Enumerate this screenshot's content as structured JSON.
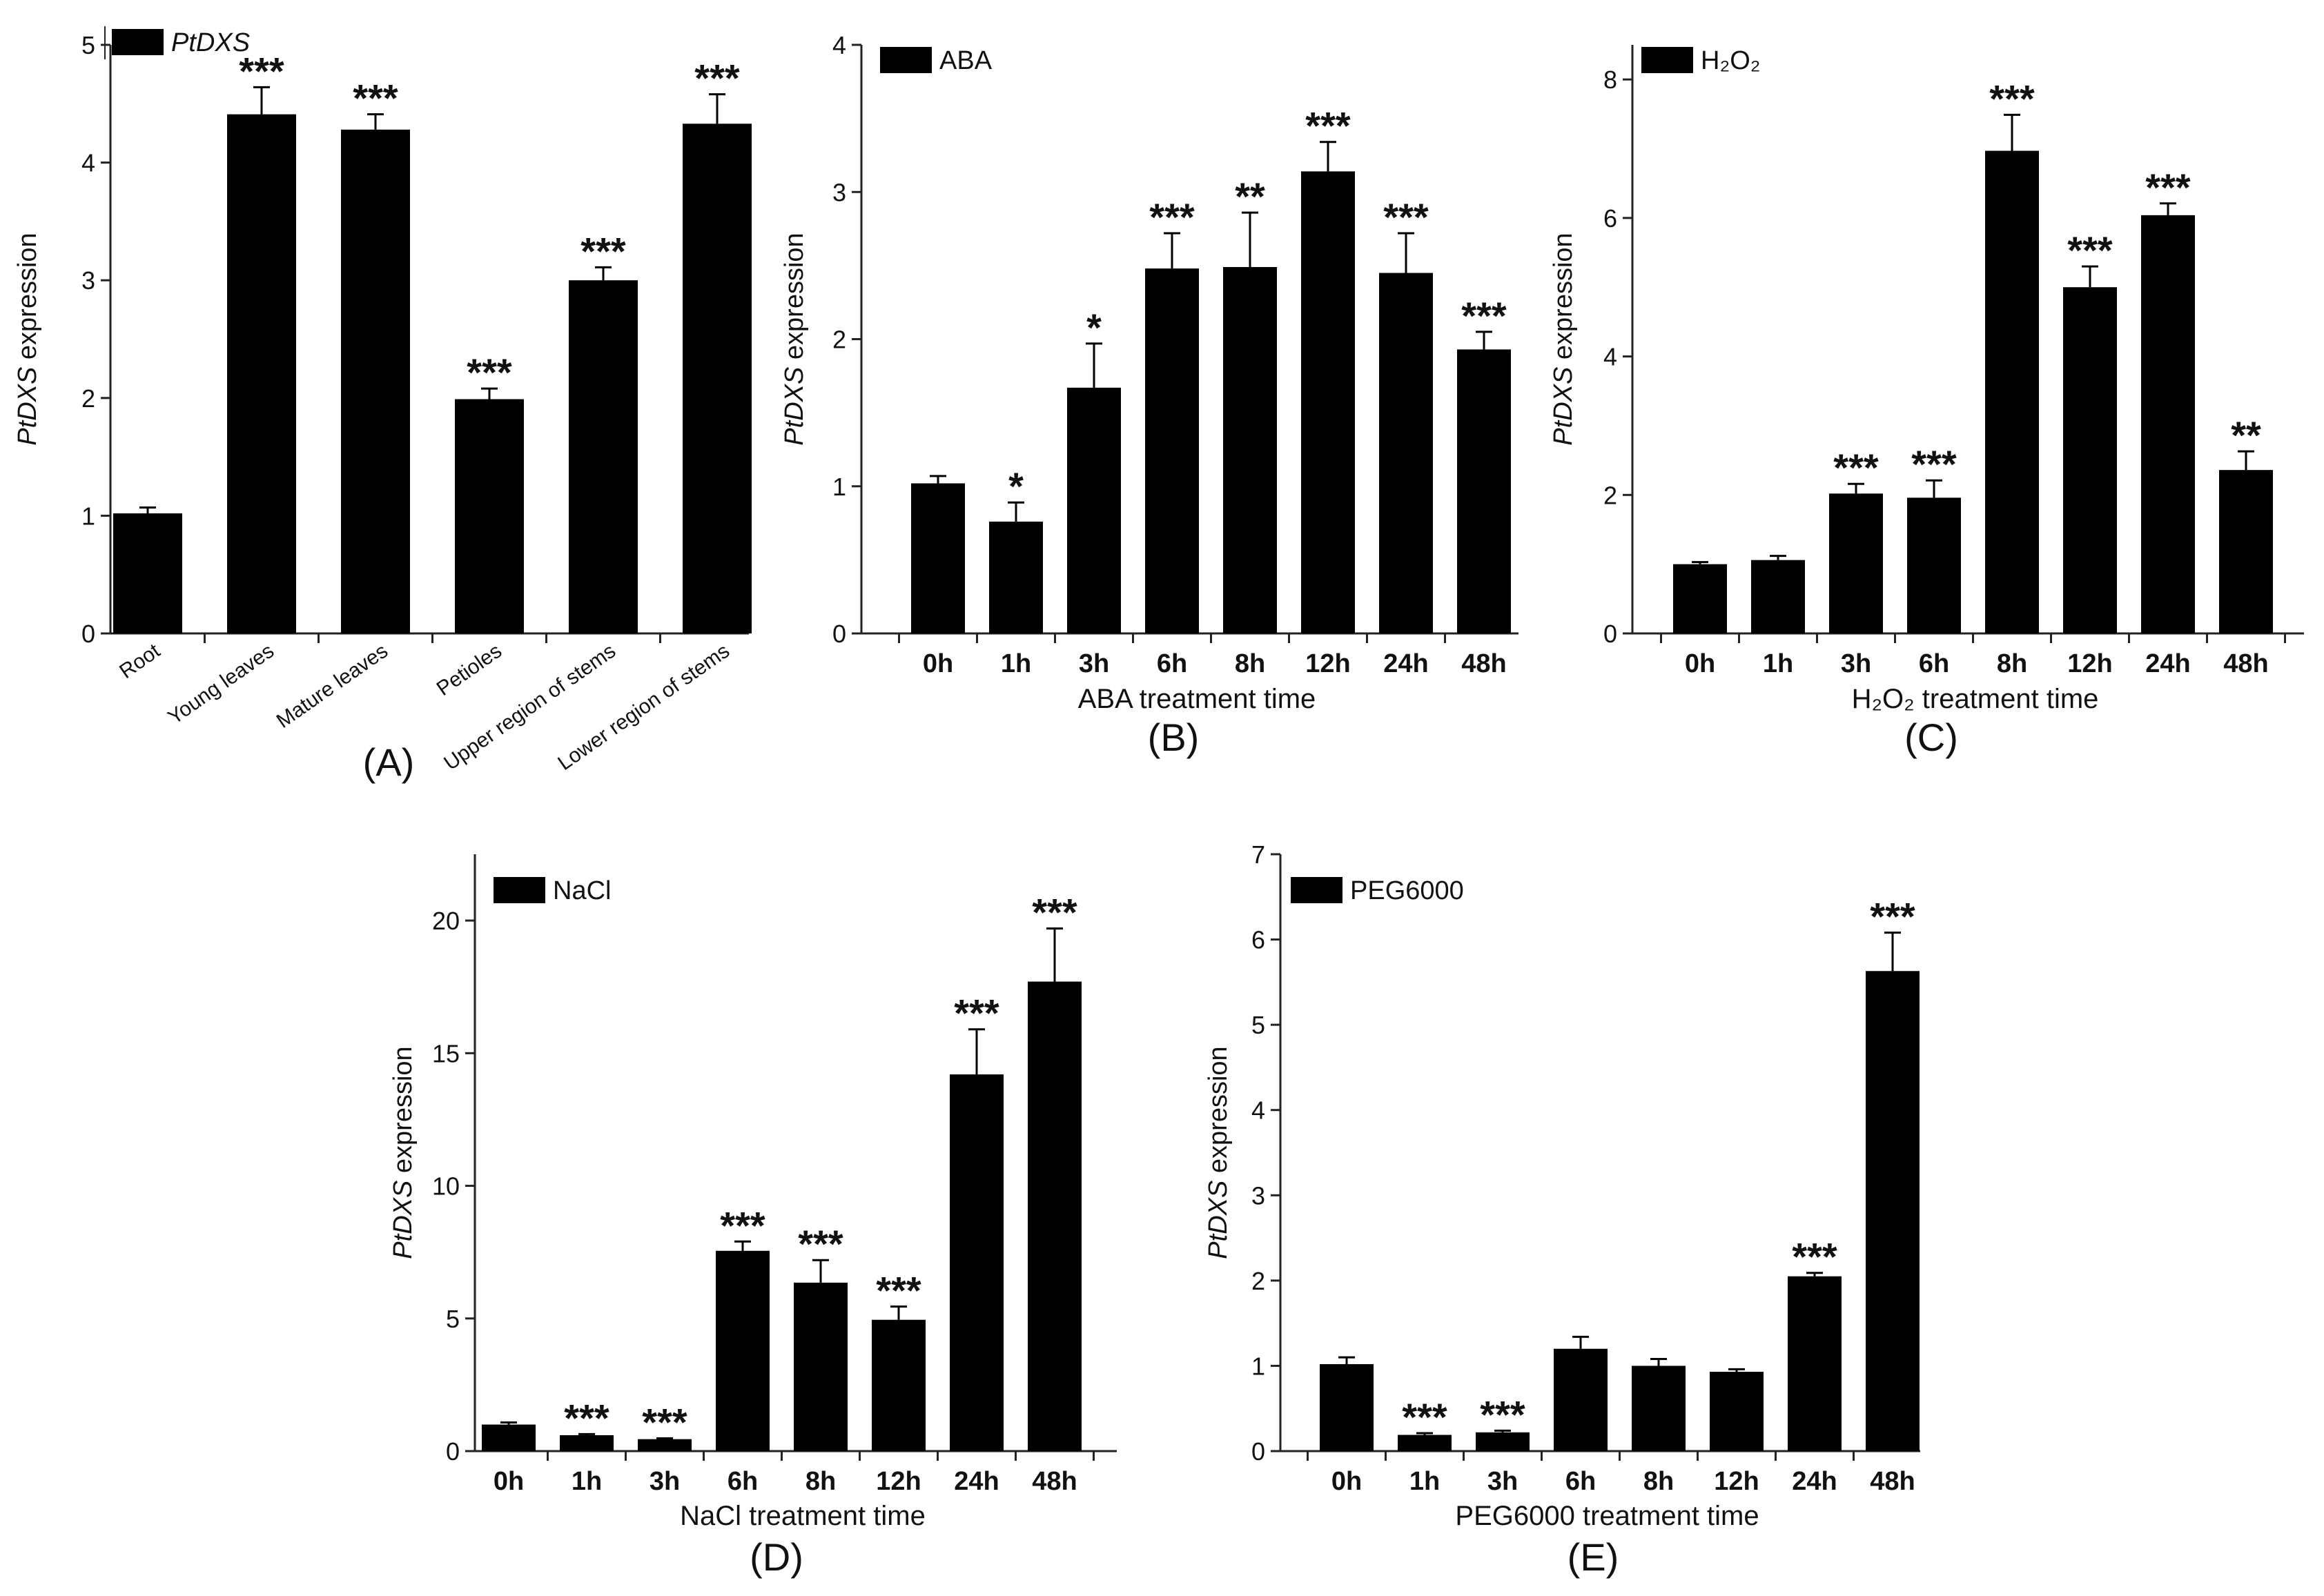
{
  "chart_data": [
    {
      "type": "bar",
      "panel_label": "(A)",
      "legend": "PtDXS",
      "legend_italic": true,
      "ylabel_italic": "PtDXS",
      "ylabel_rest": " expression",
      "xlabel": "",
      "ylim": [
        0,
        5
      ],
      "yticks": [
        0,
        1,
        2,
        3,
        4,
        5
      ],
      "categories": [
        "Root",
        "Young leaves",
        "Mature leaves",
        "Petioles",
        "Upper region of stems",
        "Lower region of stems"
      ],
      "values": [
        1.02,
        4.41,
        4.28,
        1.99,
        3.0,
        4.33
      ],
      "errors": [
        0.05,
        0.23,
        0.13,
        0.09,
        0.11,
        0.25
      ],
      "significance": [
        "",
        "***",
        "***",
        "***",
        "***",
        "***"
      ]
    },
    {
      "type": "bar",
      "panel_label": "(B)",
      "legend": "ABA",
      "legend_italic": false,
      "ylabel_italic": "PtDXS",
      "ylabel_rest": " expression",
      "xlabel": "ABA treatment time",
      "ylim": [
        0,
        4
      ],
      "yticks": [
        0,
        1,
        2,
        3,
        4
      ],
      "categories": [
        "0h",
        "1h",
        "3h",
        "6h",
        "8h",
        "12h",
        "24h",
        "48h"
      ],
      "values": [
        1.02,
        0.76,
        1.67,
        2.48,
        2.49,
        3.14,
        2.45,
        1.93
      ],
      "errors": [
        0.05,
        0.13,
        0.3,
        0.24,
        0.37,
        0.2,
        0.27,
        0.12
      ],
      "significance": [
        "",
        "*",
        "*",
        "***",
        "**",
        "***",
        "***",
        "***"
      ]
    },
    {
      "type": "bar",
      "panel_label": "(C)",
      "legend": "H₂O₂",
      "legend_italic": false,
      "ylabel_italic": "PtDXS",
      "ylabel_rest": "  expression",
      "xlabel": "H₂O₂ treatment time",
      "ylim": [
        0,
        8.5
      ],
      "yticks": [
        0,
        2,
        4,
        6,
        8
      ],
      "categories": [
        "0h",
        "1h",
        "3h",
        "6h",
        "8h",
        "12h",
        "24h",
        "48h"
      ],
      "values": [
        1.0,
        1.06,
        2.02,
        1.96,
        6.97,
        5.0,
        6.04,
        2.36
      ],
      "errors": [
        0.03,
        0.06,
        0.14,
        0.25,
        0.52,
        0.3,
        0.17,
        0.27
      ],
      "significance": [
        "",
        "",
        "***",
        "***",
        "***",
        "***",
        "***",
        "**"
      ]
    },
    {
      "type": "bar",
      "panel_label": "(D)",
      "legend": "NaCl",
      "legend_italic": false,
      "ylabel_italic": "PtDXS",
      "ylabel_rest": " expression",
      "xlabel": "NaCl treatment time",
      "ylim": [
        0,
        22.5
      ],
      "yticks": [
        0,
        5,
        10,
        15,
        20
      ],
      "categories": [
        "0h",
        "1h",
        "3h",
        "6h",
        "8h",
        "12h",
        "24h",
        "48h"
      ],
      "values": [
        1.0,
        0.6,
        0.45,
        7.55,
        6.35,
        4.95,
        14.2,
        17.7
      ],
      "errors": [
        0.08,
        0.04,
        0.03,
        0.35,
        0.85,
        0.5,
        1.7,
        2.0
      ],
      "significance": [
        "",
        "***",
        "***",
        "***",
        "***",
        "***",
        "***",
        "***"
      ]
    },
    {
      "type": "bar",
      "panel_label": "(E)",
      "legend": "PEG6000",
      "legend_italic": false,
      "ylabel_italic": "PtDXS",
      "ylabel_rest": " expression",
      "xlabel": "PEG6000 treatment time",
      "ylim": [
        0,
        7
      ],
      "yticks": [
        0,
        1,
        2,
        3,
        4,
        5,
        6,
        7
      ],
      "categories": [
        "0h",
        "1h",
        "3h",
        "6h",
        "8h",
        "12h",
        "24h",
        "48h"
      ],
      "values": [
        1.02,
        0.19,
        0.22,
        1.2,
        1.0,
        0.93,
        2.05,
        5.63
      ],
      "errors": [
        0.08,
        0.02,
        0.02,
        0.14,
        0.08,
        0.03,
        0.04,
        0.45
      ],
      "significance": [
        "",
        "***",
        "***",
        "",
        "",
        "",
        "***",
        "***"
      ]
    }
  ]
}
